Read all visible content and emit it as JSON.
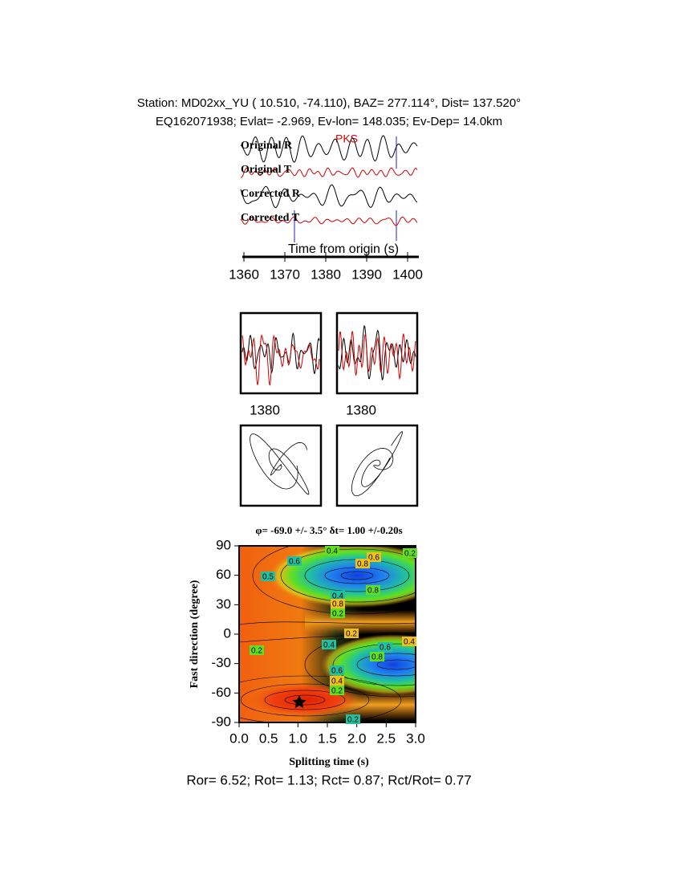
{
  "header": {
    "line1": "Station: MD02xx_YU (  10.510,  -74.110), BAZ=  277.114°, Dist=  137.520°",
    "line2": "EQ162071938; Evlat=  -2.969, Ev-lon= 148.035; Ev-Dep= 14.0km"
  },
  "traces": {
    "labels": [
      "Original R",
      "Original T",
      "Corrected R",
      "Corrected T"
    ],
    "phase": "PKS",
    "xlabel": "Time from origin (s)",
    "xticks": [
      "1360",
      "1370",
      "1380",
      "1390",
      "1400"
    ]
  },
  "windows": {
    "xticks": [
      "1380",
      "1380"
    ]
  },
  "grid": {
    "title": "φ= -69.0 +/- 3.5° δt= 1.00 +/-0.20s",
    "xlabel": "Splitting time (s)",
    "ylabel": "Fast direction (degree)",
    "xticks": [
      "0.0",
      "0.5",
      "1.0",
      "1.5",
      "2.0",
      "2.5",
      "3.0"
    ],
    "yticks": [
      "90",
      "60",
      "30",
      "0",
      "-30",
      "-60",
      "-90"
    ],
    "contour_labels": [
      "0.4",
      "0.6",
      "0.6",
      "0.2",
      "0.5",
      "0.8",
      "0.8",
      "0.4",
      "0.8",
      "0.2",
      "0.4",
      "0.2",
      "0.2",
      "0.6",
      "0.4",
      "0.8",
      "0.6",
      "0.4",
      "0.2",
      "0.2"
    ]
  },
  "footer": "Ror= 6.52; Rot= 1.13; Rct= 0.87; Rct/Rot= 0.77"
}
